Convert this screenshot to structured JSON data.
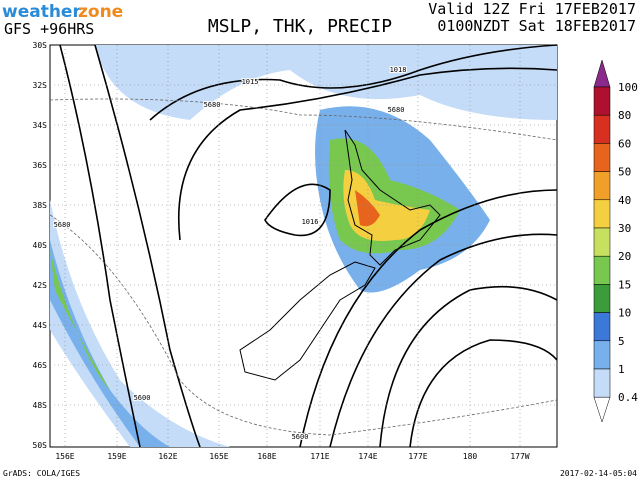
{
  "header": {
    "brand_weather": "weather",
    "brand_zone": "zone",
    "model": "GFS  +96HRS",
    "title": "MSLP, THK, PRECIP",
    "valid_line1": "Valid 12Z Fri 17FEB2017",
    "valid_line2": "0100NZDT Sat 18FEB2017"
  },
  "latitude_labels": [
    "30S",
    "32S",
    "34S",
    "36S",
    "38S",
    "40S",
    "42S",
    "44S",
    "46S",
    "48S",
    "50S"
  ],
  "longitude_labels": [
    "156E",
    "159E",
    "162E",
    "165E",
    "168E",
    "171E",
    "174E",
    "177E",
    "180",
    "177W"
  ],
  "colorbar": {
    "labels": [
      "100",
      "80",
      "60",
      "50",
      "40",
      "30",
      "20",
      "15",
      "10",
      "5",
      "1",
      "0.4"
    ],
    "colors": [
      "#8a2a8a",
      "#b01030",
      "#d83020",
      "#e8641c",
      "#f0a028",
      "#f4d040",
      "#c8e060",
      "#78c850",
      "#3c9c3c",
      "#3c78d8",
      "#78b0ec",
      "#c4dcf8"
    ]
  },
  "contour_labels": [
    "1015",
    "1018",
    "5680",
    "5680",
    "1016",
    "5680",
    "5600",
    "5600"
  ],
  "footer": {
    "credit": "GrADS: COLA/IGES",
    "timestamp": "2017-02-14-05:04"
  }
}
